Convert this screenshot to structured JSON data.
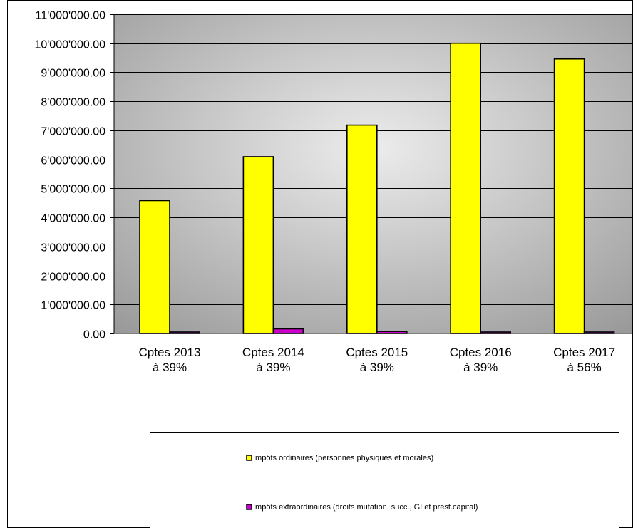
{
  "chart_data": {
    "type": "bar",
    "categories": [
      [
        "Cptes 2013",
        "à 39%"
      ],
      [
        "Cptes 2014",
        "à 39%"
      ],
      [
        "Cptes 2015",
        "à 39%"
      ],
      [
        "Cptes 2016",
        "à 39%"
      ],
      [
        "Cptes 2017",
        "à 56%"
      ]
    ],
    "series": [
      {
        "name": "Impôts ordinaires (personnes physiques et morales)",
        "color": "#ffff00",
        "values": [
          4580000,
          6090000,
          7180000,
          10000000,
          9460000
        ]
      },
      {
        "name": "Impôts extraordinaires (droits mutation, succ., GI et prest.capital)",
        "color": "#cc00cc",
        "values": [
          20000,
          160000,
          70000,
          30000,
          45000
        ]
      }
    ],
    "yticks": [
      "0.00",
      "1'000'000.00",
      "2'000'000.00",
      "3'000'000.00",
      "4'000'000.00",
      "5'000'000.00",
      "6'000'000.00",
      "7'000'000.00",
      "8'000'000.00",
      "9'000'000.00",
      "10'000'000.00",
      "11'000'000.00"
    ],
    "ylim": [
      0,
      11000000
    ],
    "grid": true,
    "legend": "bottom",
    "title": "",
    "xlabel": "",
    "ylabel": ""
  }
}
